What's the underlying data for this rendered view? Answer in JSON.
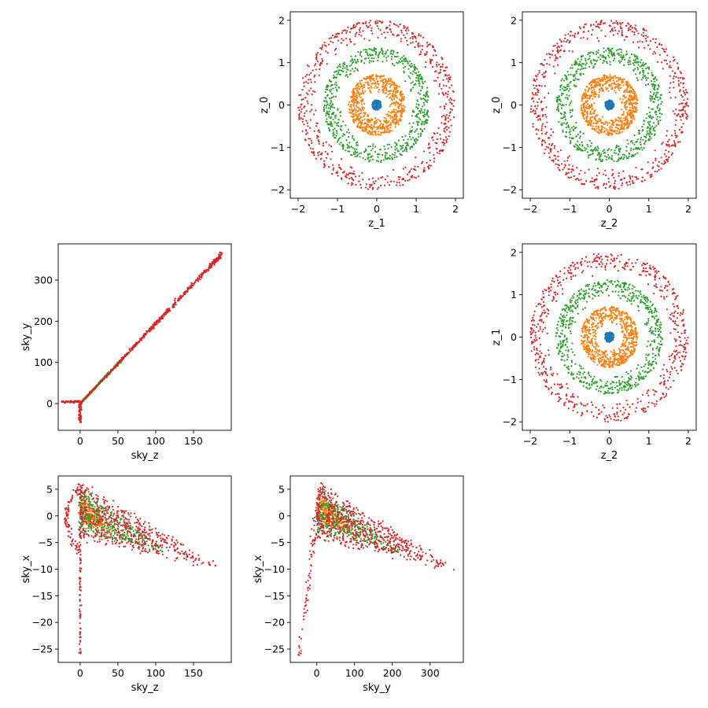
{
  "chart_data": [
    {
      "id": "z1_vs_z0",
      "type": "scatter",
      "title": "",
      "xlabel": "z_1",
      "ylabel": "z_0",
      "xlim": [
        -2.2,
        2.2
      ],
      "ylim": [
        -2.2,
        2.2
      ],
      "xticks": [
        -2,
        -1,
        0,
        1,
        2
      ],
      "yticks": [
        -2,
        -1,
        0,
        1,
        2
      ],
      "grid": false,
      "pattern": "rings",
      "series": [
        {
          "color": "#1f77b4",
          "values": {
            "inner": 0.0,
            "outer": 0.12,
            "count": 120
          }
        },
        {
          "color": "#ff7f0e",
          "values": {
            "inner": 0.3,
            "outer": 0.72,
            "count": 700
          }
        },
        {
          "color": "#2ca02c",
          "values": {
            "inner": 0.9,
            "outer": 1.35,
            "count": 650
          }
        },
        {
          "color": "#d62728",
          "values": {
            "inner": 1.5,
            "outer": 2.0,
            "count": 600
          }
        }
      ]
    },
    {
      "id": "z2_vs_z0",
      "type": "scatter",
      "title": "",
      "xlabel": "z_2",
      "ylabel": "z_0",
      "xlim": [
        -2.2,
        2.2
      ],
      "ylim": [
        -2.2,
        2.2
      ],
      "xticks": [
        -2,
        -1,
        0,
        1,
        2
      ],
      "yticks": [
        -2,
        -1,
        0,
        1,
        2
      ],
      "grid": false,
      "pattern": "rings",
      "series": [
        {
          "color": "#1f77b4",
          "values": {
            "inner": 0.0,
            "outer": 0.12,
            "count": 120
          }
        },
        {
          "color": "#ff7f0e",
          "values": {
            "inner": 0.3,
            "outer": 0.72,
            "count": 700
          }
        },
        {
          "color": "#2ca02c",
          "values": {
            "inner": 0.9,
            "outer": 1.35,
            "count": 650
          }
        },
        {
          "color": "#d62728",
          "values": {
            "inner": 1.5,
            "outer": 2.0,
            "count": 600
          }
        }
      ]
    },
    {
      "id": "skyz_vs_skyy",
      "type": "scatter",
      "title": "",
      "xlabel": "sky_z",
      "ylabel": "sky_y",
      "xlim": [
        -29,
        200
      ],
      "ylim": [
        -65,
        388
      ],
      "xticks": [
        0,
        50,
        100,
        150
      ],
      "yticks": [
        0,
        100,
        200,
        300
      ],
      "grid": false,
      "pattern": "sky_zy",
      "series": [
        {
          "color": "#1f77b4",
          "values": {
            "count": 40
          }
        },
        {
          "color": "#ff7f0e",
          "values": {
            "count": 250
          }
        },
        {
          "color": "#2ca02c",
          "values": {
            "count": 350
          }
        },
        {
          "color": "#d62728",
          "values": {
            "count": 700
          }
        }
      ]
    },
    {
      "id": "z2_vs_z1",
      "type": "scatter",
      "title": "",
      "xlabel": "z_2",
      "ylabel": "z_1",
      "xlim": [
        -2.2,
        2.2
      ],
      "ylim": [
        -2.2,
        2.2
      ],
      "xticks": [
        -2,
        -1,
        0,
        1,
        2
      ],
      "yticks": [
        -2,
        -1,
        0,
        1,
        2
      ],
      "grid": false,
      "pattern": "rings",
      "series": [
        {
          "color": "#1f77b4",
          "values": {
            "inner": 0.0,
            "outer": 0.12,
            "count": 120
          }
        },
        {
          "color": "#ff7f0e",
          "values": {
            "inner": 0.3,
            "outer": 0.72,
            "count": 700
          }
        },
        {
          "color": "#2ca02c",
          "values": {
            "inner": 0.9,
            "outer": 1.35,
            "count": 650
          }
        },
        {
          "color": "#d62728",
          "values": {
            "inner": 1.5,
            "outer": 2.0,
            "count": 600
          }
        }
      ]
    },
    {
      "id": "skyz_vs_skyx",
      "type": "scatter",
      "title": "",
      "xlabel": "sky_z",
      "ylabel": "sky_x",
      "xlim": [
        -29,
        200
      ],
      "ylim": [
        -27.5,
        7.5
      ],
      "xticks": [
        0,
        50,
        100,
        150
      ],
      "yticks": [
        -25,
        -20,
        -15,
        -10,
        -5,
        0,
        5
      ],
      "grid": false,
      "pattern": "sky_zx",
      "series": [
        {
          "color": "#1f77b4",
          "values": {
            "count": 40
          }
        },
        {
          "color": "#ff7f0e",
          "values": {
            "count": 250
          }
        },
        {
          "color": "#2ca02c",
          "values": {
            "count": 350
          }
        },
        {
          "color": "#d62728",
          "values": {
            "count": 700
          }
        }
      ]
    },
    {
      "id": "skyy_vs_skyx",
      "type": "scatter",
      "title": "",
      "xlabel": "sky_y",
      "ylabel": "sky_x",
      "xlim": [
        -70,
        388
      ],
      "ylim": [
        -27.5,
        7.5
      ],
      "xticks": [
        0,
        100,
        200,
        300
      ],
      "yticks": [
        -25,
        -20,
        -15,
        -10,
        -5,
        0,
        5
      ],
      "grid": false,
      "pattern": "sky_yx",
      "series": [
        {
          "color": "#1f77b4",
          "values": {
            "count": 40
          }
        },
        {
          "color": "#ff7f0e",
          "values": {
            "count": 250
          }
        },
        {
          "color": "#2ca02c",
          "values": {
            "count": 350
          }
        },
        {
          "color": "#d62728",
          "values": {
            "count": 700
          }
        }
      ]
    }
  ]
}
